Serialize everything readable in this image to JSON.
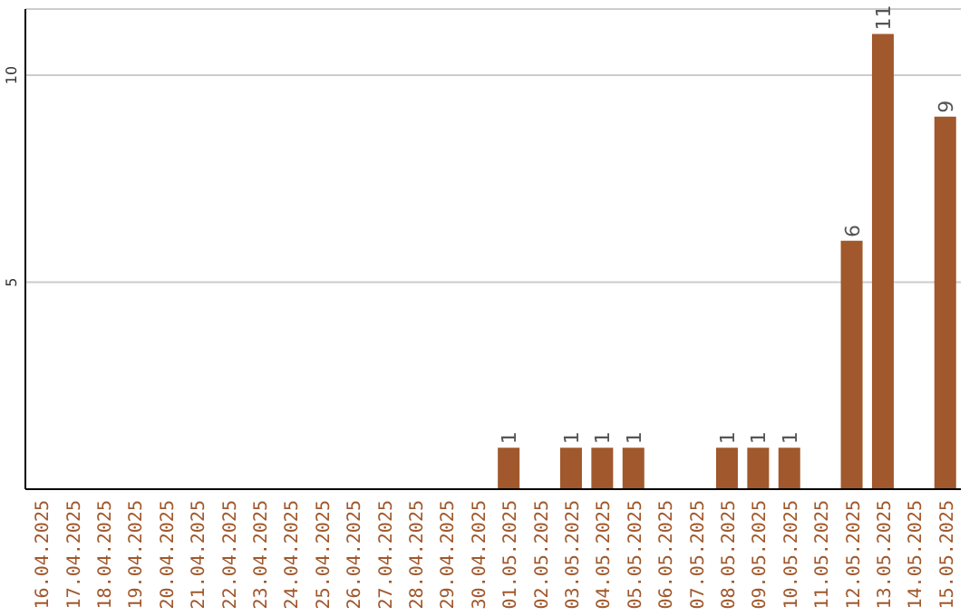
{
  "chart_data": {
    "type": "bar",
    "categories": [
      "16.04.2025",
      "17.04.2025",
      "18.04.2025",
      "19.04.2025",
      "20.04.2025",
      "21.04.2025",
      "22.04.2025",
      "23.04.2025",
      "24.04.2025",
      "25.04.2025",
      "26.04.2025",
      "27.04.2025",
      "28.04.2025",
      "29.04.2025",
      "30.04.2025",
      "01.05.2025",
      "02.05.2025",
      "03.05.2025",
      "04.05.2025",
      "05.05.2025",
      "06.05.2025",
      "07.05.2025",
      "08.05.2025",
      "09.05.2025",
      "10.05.2025",
      "11.05.2025",
      "12.05.2025",
      "13.05.2025",
      "14.05.2025",
      "15.05.2025"
    ],
    "values": [
      0,
      0,
      0,
      0,
      0,
      0,
      0,
      0,
      0,
      0,
      0,
      0,
      0,
      0,
      0,
      1,
      0,
      1,
      1,
      1,
      0,
      0,
      1,
      1,
      1,
      0,
      6,
      11,
      0,
      9
    ],
    "value_labels": [
      null,
      null,
      null,
      null,
      null,
      null,
      null,
      null,
      null,
      null,
      null,
      null,
      null,
      null,
      null,
      "1",
      null,
      "1",
      "1",
      "1",
      null,
      null,
      "1",
      "1",
      "1",
      null,
      "6",
      "11",
      null,
      "9"
    ],
    "color": "#a0582c",
    "ylim": [
      0,
      11.6
    ],
    "yticks": [
      5,
      10
    ],
    "grid": "y"
  }
}
